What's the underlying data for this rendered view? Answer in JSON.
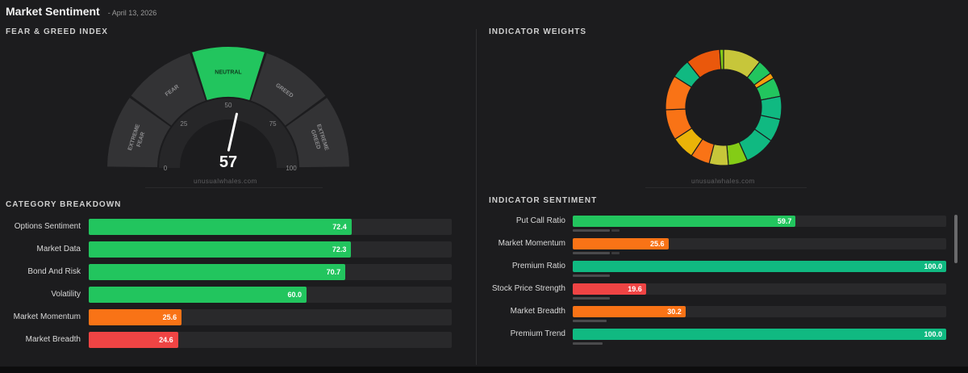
{
  "header": {
    "title": "Market Sentiment",
    "date": "- April 13, 2026"
  },
  "fear_greed": {
    "label": "FEAR & GREED INDEX",
    "value": 57,
    "segments": [
      "EXTREME FEAR",
      "FEAR",
      "NEUTRAL",
      "GREED",
      "EXTREME GREED"
    ],
    "ticks": [
      "0",
      "25",
      "50",
      "75",
      "100"
    ],
    "watermark": "unusualwhales.com",
    "active_color": "#22c55e",
    "segment_color": "#333335"
  },
  "indicator_weights": {
    "label": "INDICATOR WEIGHTS",
    "watermark": "unusualwhales.com",
    "slice_colors": [
      "#c7c63a",
      "#22c55e",
      "#f59e0b",
      "#22c55e",
      "#10b981",
      "#10b981",
      "#10b981",
      "#84cc16",
      "#c7c63a",
      "#f97316",
      "#eab308",
      "#f97316",
      "#f97316",
      "#10b981",
      "#ea580c",
      "#84cc16"
    ],
    "slice_weights": [
      10,
      4,
      1.5,
      5,
      6,
      6,
      8,
      5,
      5,
      5,
      6,
      8,
      9,
      5,
      9,
      1
    ]
  },
  "category_breakdown": {
    "label": "CATEGORY BREAKDOWN",
    "items": [
      {
        "label": "Options Sentiment",
        "value": "72.4",
        "color": "#22c55e"
      },
      {
        "label": "Market Data",
        "value": "72.3",
        "color": "#22c55e"
      },
      {
        "label": "Bond And Risk",
        "value": "70.7",
        "color": "#22c55e"
      },
      {
        "label": "Volatility",
        "value": "60.0",
        "color": "#22c55e"
      },
      {
        "label": "Market Momentum",
        "value": "25.6",
        "color": "#f97316"
      },
      {
        "label": "Market Breadth",
        "value": "24.6",
        "color": "#ef4444"
      }
    ]
  },
  "indicator_sentiment": {
    "label": "INDICATOR SENTIMENT",
    "items": [
      {
        "label": "Put Call Ratio",
        "value": "59.7",
        "color": "#22c55e",
        "sub": 0.1,
        "sub2": 0.02
      },
      {
        "label": "Market Momentum",
        "value": "25.6",
        "color": "#f97316",
        "sub": 0.1,
        "sub2": 0.02
      },
      {
        "label": "Premium Ratio",
        "value": "100.0",
        "color": "#10b981",
        "sub": 0.1,
        "sub2": 0
      },
      {
        "label": "Stock Price Strength",
        "value": "19.6",
        "color": "#ef4444",
        "sub": 0.1,
        "sub2": 0
      },
      {
        "label": "Market Breadth",
        "value": "30.2",
        "color": "#f97316",
        "sub": 0.09,
        "sub2": 0
      },
      {
        "label": "Premium Trend",
        "value": "100.0",
        "color": "#10b981",
        "sub": 0.08,
        "sub2": 0
      }
    ]
  }
}
